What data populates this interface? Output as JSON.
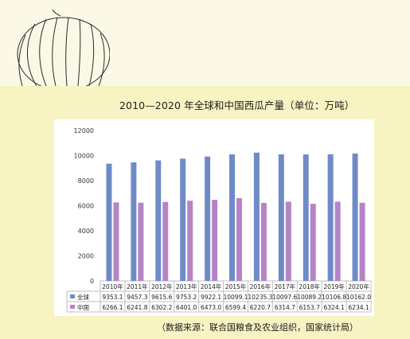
{
  "colors": {
    "global": "#6f8bc7",
    "china": "#b584c6",
    "background": "#f7f3c2"
  },
  "decoration": {
    "icon": "watermelon-icon"
  },
  "source_text": "（数据来源：联合国粮食及农业组织，国家统计局）",
  "chart_data": {
    "type": "bar",
    "title": "2010—2020 年全球和中国西瓜产量（单位：万吨）",
    "categories": [
      "2010年",
      "2011年",
      "2012年",
      "2013年",
      "2014年",
      "2015年",
      "2016年",
      "2017年",
      "2018年",
      "2019年",
      "2020年"
    ],
    "series": [
      {
        "name": "全球",
        "values": [
          9353.1,
          9457.3,
          9615.6,
          9753.2,
          9922.1,
          10099.1,
          10235.3,
          10097.6,
          10089.2,
          10106.8,
          10162.0
        ]
      },
      {
        "name": "中国",
        "values": [
          6266.1,
          6241.8,
          6302.2,
          6401.0,
          6473.0,
          6599.4,
          6220.7,
          6314.7,
          6153.7,
          6324.1,
          6234.1
        ]
      }
    ],
    "ylim": [
      0,
      12000
    ],
    "yticks": [
      0,
      2000,
      4000,
      6000,
      8000,
      10000,
      12000
    ],
    "data_table": [
      [
        "9353.1",
        "9457.3",
        "9615.6",
        "9753.2",
        "9922.1",
        "10099.1",
        "10235.3",
        "10097.6",
        "10089.2",
        "10106.8",
        "10162.0"
      ],
      [
        "6266.1",
        "6241.8",
        "6302.2",
        "6401.0",
        "6473.0",
        "6599.4",
        "6220.7",
        "6314.7",
        "6153.7",
        "6324.1",
        "6234.1"
      ]
    ],
    "grid": false
  }
}
